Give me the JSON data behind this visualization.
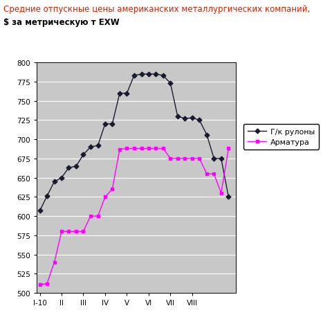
{
  "title_line1": "Средние отпускные цены американских металлургических компаний,",
  "title_line2": "$ за метрическую т EXW",
  "title_color": "#cc2200",
  "subtitle_color": "#000000",
  "x_labels": [
    "I-10",
    "II",
    "III",
    "IV",
    "V",
    "VI",
    "VII",
    "VIII"
  ],
  "hrc_x": [
    0,
    0.33,
    0.67,
    1.0,
    1.33,
    1.67,
    2.0,
    2.33,
    2.67,
    3.0,
    3.33,
    3.67,
    4.0,
    4.33,
    4.67,
    5.0,
    5.33,
    5.67,
    6.0,
    6.33,
    6.67,
    7.0,
    7.33,
    7.67,
    8.0,
    8.33,
    8.67
  ],
  "hrc_y": [
    607,
    626,
    645,
    650,
    663,
    665,
    680,
    690,
    692,
    720,
    720,
    760,
    760,
    783,
    785,
    785,
    785,
    783,
    773,
    730,
    727,
    728,
    725,
    706,
    675,
    675,
    625
  ],
  "rebar_x": [
    0,
    0.33,
    0.67,
    1.0,
    1.33,
    1.67,
    2.0,
    2.33,
    2.67,
    3.0,
    3.33,
    3.67,
    4.0,
    4.33,
    4.67,
    5.0,
    5.33,
    5.67,
    6.0,
    6.33,
    6.67,
    7.0,
    7.33,
    7.67,
    8.0,
    8.33,
    8.67
  ],
  "rebar_y": [
    511,
    512,
    540,
    580,
    580,
    580,
    580,
    600,
    600,
    625,
    635,
    687,
    688,
    688,
    688,
    688,
    688,
    688,
    675,
    675,
    675,
    675,
    675,
    655,
    655,
    630,
    688
  ],
  "hrc_color": "#1a1a2e",
  "rebar_color": "#ff00ff",
  "fig_bg": "#ffffff",
  "plot_bg": "#c8c8c8",
  "ylim": [
    500,
    800
  ],
  "yticks": [
    500,
    525,
    550,
    575,
    600,
    625,
    650,
    675,
    700,
    725,
    750,
    775,
    800
  ],
  "legend_hrc": "Г/к рулоны",
  "legend_rebar": "Арматура"
}
